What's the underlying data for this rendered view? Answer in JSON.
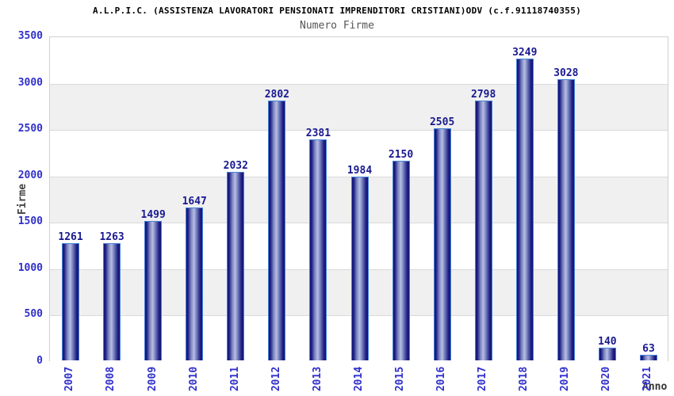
{
  "chart_data": {
    "type": "bar",
    "title": "A.L.P.I.C. (ASSISTENZA LAVORATORI PENSIONATI IMPRENDITORI CRISTIANI)ODV (c.f.91118740355)",
    "subtitle": "Numero Firme",
    "xlabel": "Anno",
    "ylabel": "Firme",
    "categories": [
      "2007",
      "2008",
      "2009",
      "2010",
      "2011",
      "2012",
      "2013",
      "2014",
      "2015",
      "2016",
      "2017",
      "2018",
      "2019",
      "2020",
      "2021"
    ],
    "values": [
      1261,
      1263,
      1499,
      1647,
      2032,
      2802,
      2381,
      1984,
      2150,
      2505,
      2798,
      3249,
      3028,
      140,
      63
    ],
    "yticks": [
      0,
      500,
      1000,
      1500,
      2000,
      2500,
      3000,
      3500
    ],
    "ylim": [
      0,
      3500
    ],
    "ytick_interval": 500,
    "grid": "horizontal bands alternating white/gray every 500",
    "legend": "none",
    "colors": {
      "title": "#000000",
      "subtitle": "#555555",
      "axis_tick_blue": "#3030cc",
      "value_label_navy": "#191990",
      "band_gray": "#f0f0f0",
      "band_white": "#ffffff",
      "gridline": "#d9d9d9",
      "plot_border": "#d0d0d0",
      "bar_dark": "#131374",
      "bar_mid": "#7e87c0",
      "bar_light": "#b6bee6",
      "bar_border": "#4583d7"
    }
  }
}
